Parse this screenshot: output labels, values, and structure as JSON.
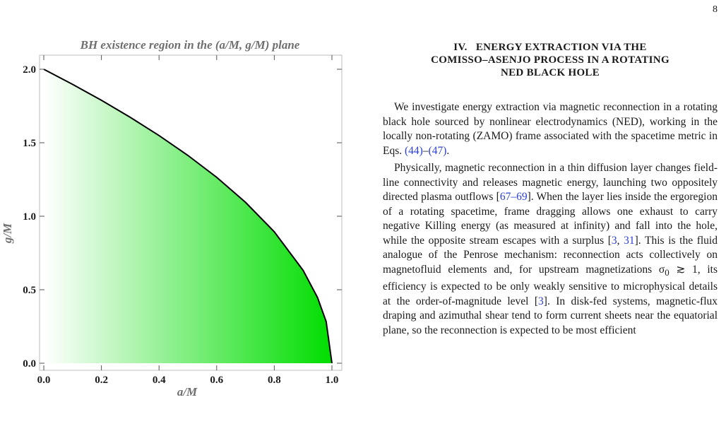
{
  "page_number": "8",
  "figure": {
    "title": "BH existence region in the (a/M, g/M) plane",
    "xlabel": "a/M",
    "ylabel": "g/M",
    "colors": {
      "fill": "#00dd00",
      "boundary": "#000000"
    }
  },
  "chart_data": {
    "type": "area",
    "title": "BH existence region in the (a/M, g/M) plane",
    "xlabel": "a/M",
    "ylabel": "g/M",
    "xlim": [
      0.0,
      1.0
    ],
    "ylim": [
      0.0,
      2.0
    ],
    "xticks": [
      "0.0",
      "0.2",
      "0.4",
      "0.6",
      "0.8",
      "1.0"
    ],
    "yticks": [
      "0.0",
      "0.5",
      "1.0",
      "1.5",
      "2.0"
    ],
    "grid": false,
    "series": [
      {
        "x": [
          0.0,
          0.1,
          0.2,
          0.3,
          0.4,
          0.5,
          0.6,
          0.7,
          0.8,
          0.9,
          0.95,
          0.98,
          1.0
        ],
        "y": [
          2.0,
          1.897,
          1.789,
          1.673,
          1.549,
          1.414,
          1.265,
          1.095,
          0.894,
          0.632,
          0.447,
          0.283,
          0.0
        ]
      }
    ]
  },
  "section": {
    "heading_line1": "IV.   ENERGY EXTRACTION VIA THE",
    "heading_line2": "COMISSO–ASENJO PROCESS IN A ROTATING",
    "heading_line3": "NED BLACK HOLE",
    "p1_a": "We investigate energy extraction via magnetic reconnection in a rotating black hole sourced by nonlinear electrodynamics (NED), working in the locally non-rotating (ZAMO) frame associated with the spacetime metric in Eqs. ",
    "p1_ref1": "(44)",
    "p1_dash": "–",
    "p1_ref2": "(47)",
    "p1_end": ".",
    "p2_a": "Physically, magnetic reconnection in a thin diffusion layer changes field-line connectivity and releases magnetic energy, launching two oppositely directed plasma outflows [",
    "p2_ref1": "67–69",
    "p2_b": "]. When the layer lies inside the ergoregion of a rotating spacetime, frame dragging allows one exhaust to carry negative Killing energy (as measured at infinity) and fall into the hole, while the opposite stream escapes with a surplus [",
    "p2_ref2": "3",
    "p2_c": ", ",
    "p2_ref3": "31",
    "p2_d": "]. This is the fluid analogue of the Penrose mechanism: reconnection acts collectively on magnetofluid elements and, for upstream magnetizations σ",
    "p2_sub": "0",
    "p2_e": " ≳ 1, its efficiency is expected to be only weakly sensitive to microphysical details at the order-of-magnitude level [",
    "p2_ref4": "3",
    "p2_f": "]. In disk-fed systems, magnetic-flux draping and azimuthal shear tend to form current sheets near the equatorial plane, so the reconnection is expected to be most efficient"
  }
}
